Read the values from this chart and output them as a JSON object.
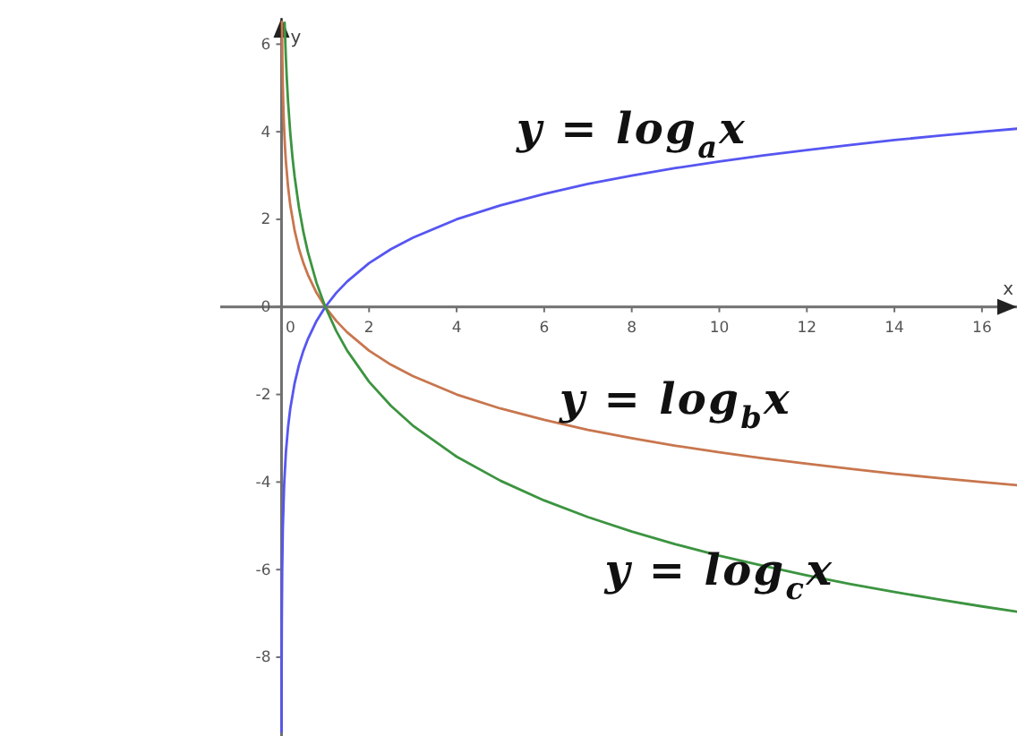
{
  "chart_data": {
    "type": "line",
    "xlim": [
      -1.4,
      16.8
    ],
    "ylim": [
      -9.8,
      6.6
    ],
    "xticks": [
      0,
      2,
      4,
      6,
      8,
      10,
      12,
      14,
      16
    ],
    "yticks": [
      -8,
      -6,
      -4,
      -2,
      0,
      2,
      4,
      6
    ],
    "xlabel": "x",
    "ylabel": "y",
    "series": [
      {
        "name": "y = log$_{a}$x",
        "color": "#5656f2",
        "x": [
          0.0012,
          0.002,
          0.004,
          0.008,
          0.015,
          0.03,
          0.06,
          0.1,
          0.15,
          0.2,
          0.3,
          0.4,
          0.5,
          0.6,
          0.8,
          1,
          1.25,
          1.5,
          2,
          2.5,
          3,
          4,
          5,
          6,
          7,
          8,
          9,
          10,
          11,
          12,
          13,
          14,
          15,
          16,
          16.8
        ],
        "values": [
          -9.7,
          -8.97,
          -7.97,
          -6.97,
          -6.06,
          -5.06,
          -4.06,
          -3.32,
          -2.74,
          -2.32,
          -1.74,
          -1.32,
          -1,
          -0.74,
          -0.32,
          0,
          0.32,
          0.58,
          1,
          1.32,
          1.58,
          2,
          2.32,
          2.58,
          2.81,
          3,
          3.17,
          3.32,
          3.46,
          3.58,
          3.7,
          3.81,
          3.91,
          4,
          4.07
        ]
      },
      {
        "name": "y = log$_{b}$x",
        "color": "#c8764e",
        "x": [
          0.011,
          0.015,
          0.02,
          0.03,
          0.045,
          0.06,
          0.08,
          0.1,
          0.15,
          0.2,
          0.3,
          0.4,
          0.5,
          0.6,
          0.8,
          1,
          1.25,
          1.5,
          2,
          2.5,
          3,
          4,
          5,
          6,
          7,
          8,
          9,
          10,
          11,
          12,
          13,
          14,
          15,
          16,
          16.8
        ],
        "values": [
          6.51,
          6.06,
          5.64,
          5.06,
          4.47,
          4.06,
          3.64,
          3.32,
          2.74,
          2.32,
          1.74,
          1.32,
          1,
          0.74,
          0.32,
          0,
          -0.32,
          -0.58,
          -1,
          -1.32,
          -1.58,
          -2,
          -2.32,
          -2.58,
          -2.81,
          -3,
          -3.17,
          -3.32,
          -3.46,
          -3.58,
          -3.7,
          -3.81,
          -3.91,
          -4,
          -4.07
        ]
      },
      {
        "name": "y = log$_{c}$x",
        "color": "#3c9440",
        "x": [
          0.072,
          0.08,
          0.1,
          0.12,
          0.15,
          0.2,
          0.25,
          0.3,
          0.4,
          0.5,
          0.6,
          0.8,
          1,
          1.25,
          1.5,
          2,
          2.5,
          3,
          4,
          5,
          6,
          7,
          8,
          9,
          10,
          11,
          12,
          13,
          14,
          15,
          16,
          16.8
        ],
        "values": [
          6.49,
          6.23,
          5.68,
          5.23,
          4.68,
          3.97,
          3.42,
          2.97,
          2.26,
          1.71,
          1.26,
          0.55,
          0,
          -0.55,
          -1,
          -1.71,
          -2.26,
          -2.71,
          -3.42,
          -3.97,
          -4.42,
          -4.8,
          -5.13,
          -5.42,
          -5.68,
          -5.91,
          -6.13,
          -6.33,
          -6.51,
          -6.68,
          -6.84,
          -6.96
        ]
      }
    ]
  }
}
